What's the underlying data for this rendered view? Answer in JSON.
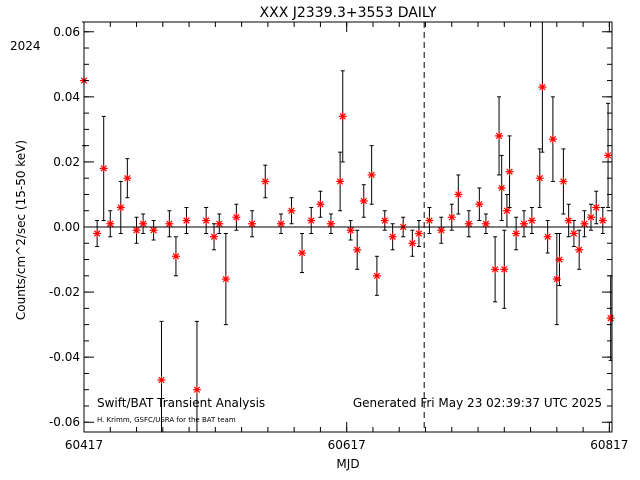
{
  "chart_data": {
    "type": "scatter",
    "title": "XXX J2339.3+3553 DAILY",
    "xlabel": "MJD",
    "ylabel": "Counts/cm^2/sec (15-50 keV)",
    "xlim": [
      60417,
      60819
    ],
    "ylim": [
      -0.063,
      0.063
    ],
    "xticks": [
      "60417",
      "60617",
      "60817"
    ],
    "xtick_values": [
      60417,
      60617,
      60817
    ],
    "yticks": [
      "-0.06",
      "-0.04",
      "-0.02",
      "0.00",
      "0.02",
      "0.04",
      "0.06"
    ],
    "ytick_values": [
      -0.06,
      -0.04,
      -0.02,
      0.0,
      0.02,
      0.04,
      0.06
    ],
    "year_label": "2024",
    "year_boundary_mjd": 60676,
    "footer_left": "Swift/BAT Transient Analysis",
    "footer_credit": "H. Krimm, GSFC/USRA for the BAT team",
    "footer_right": "Generated Fri May 23 02:39:37 UTC 2025",
    "grid": false,
    "marker": "red-asterisk-with-error-bars",
    "colors": {
      "marker": "#ff0000",
      "errorbar": "#000000"
    },
    "points": [
      {
        "x": 60417,
        "y": 0.045,
        "e": 0.02
      },
      {
        "x": 60427,
        "y": -0.002,
        "e": 0.004
      },
      {
        "x": 60432,
        "y": 0.018,
        "e": 0.016
      },
      {
        "x": 60437,
        "y": 0.001,
        "e": 0.004
      },
      {
        "x": 60445,
        "y": 0.006,
        "e": 0.008
      },
      {
        "x": 60450,
        "y": 0.015,
        "e": 0.006
      },
      {
        "x": 60457,
        "y": -0.001,
        "e": 0.004
      },
      {
        "x": 60462,
        "y": 0.001,
        "e": 0.003
      },
      {
        "x": 60470,
        "y": -0.001,
        "e": 0.003
      },
      {
        "x": 60476,
        "y": -0.047,
        "e": 0.018
      },
      {
        "x": 60482,
        "y": 0.001,
        "e": 0.004
      },
      {
        "x": 60487,
        "y": -0.009,
        "e": 0.006
      },
      {
        "x": 60495,
        "y": 0.002,
        "e": 0.004
      },
      {
        "x": 60503,
        "y": -0.05,
        "e": 0.021
      },
      {
        "x": 60510,
        "y": 0.002,
        "e": 0.004
      },
      {
        "x": 60516,
        "y": -0.003,
        "e": 0.004
      },
      {
        "x": 60520,
        "y": 0.001,
        "e": 0.003
      },
      {
        "x": 60525,
        "y": -0.016,
        "e": 0.014
      },
      {
        "x": 60533,
        "y": 0.003,
        "e": 0.004
      },
      {
        "x": 60545,
        "y": 0.001,
        "e": 0.004
      },
      {
        "x": 60555,
        "y": 0.014,
        "e": 0.005
      },
      {
        "x": 60567,
        "y": 0.001,
        "e": 0.003
      },
      {
        "x": 60575,
        "y": 0.005,
        "e": 0.004
      },
      {
        "x": 60583,
        "y": -0.008,
        "e": 0.006
      },
      {
        "x": 60590,
        "y": 0.002,
        "e": 0.004
      },
      {
        "x": 60597,
        "y": 0.007,
        "e": 0.004
      },
      {
        "x": 60605,
        "y": 0.001,
        "e": 0.003
      },
      {
        "x": 60612,
        "y": 0.014,
        "e": 0.009
      },
      {
        "x": 60614,
        "y": 0.034,
        "e": 0.014
      },
      {
        "x": 60620,
        "y": -0.001,
        "e": 0.003
      },
      {
        "x": 60625,
        "y": -0.007,
        "e": 0.006
      },
      {
        "x": 60630,
        "y": 0.008,
        "e": 0.005
      },
      {
        "x": 60636,
        "y": 0.016,
        "e": 0.009
      },
      {
        "x": 60640,
        "y": -0.015,
        "e": 0.006
      },
      {
        "x": 60646,
        "y": 0.002,
        "e": 0.003
      },
      {
        "x": 60652,
        "y": -0.003,
        "e": 0.004
      },
      {
        "x": 60660,
        "y": 0.0,
        "e": 0.003
      },
      {
        "x": 60667,
        "y": -0.005,
        "e": 0.004
      },
      {
        "x": 60672,
        "y": -0.002,
        "e": 0.004
      },
      {
        "x": 60680,
        "y": 0.002,
        "e": 0.004
      },
      {
        "x": 60689,
        "y": -0.001,
        "e": 0.004
      },
      {
        "x": 60697,
        "y": 0.003,
        "e": 0.004
      },
      {
        "x": 60702,
        "y": 0.01,
        "e": 0.006
      },
      {
        "x": 60710,
        "y": 0.001,
        "e": 0.004
      },
      {
        "x": 60718,
        "y": 0.007,
        "e": 0.005
      },
      {
        "x": 60723,
        "y": 0.001,
        "e": 0.003
      },
      {
        "x": 60730,
        "y": -0.013,
        "e": 0.01
      },
      {
        "x": 60733,
        "y": 0.028,
        "e": 0.012
      },
      {
        "x": 60735,
        "y": 0.012,
        "e": 0.01
      },
      {
        "x": 60737,
        "y": -0.013,
        "e": 0.012
      },
      {
        "x": 60739,
        "y": 0.005,
        "e": 0.005
      },
      {
        "x": 60741,
        "y": 0.017,
        "e": 0.011
      },
      {
        "x": 60746,
        "y": -0.002,
        "e": 0.005
      },
      {
        "x": 60752,
        "y": 0.001,
        "e": 0.004
      },
      {
        "x": 60758,
        "y": 0.002,
        "e": 0.004
      },
      {
        "x": 60764,
        "y": 0.015,
        "e": 0.009
      },
      {
        "x": 60766,
        "y": 0.043,
        "e": 0.02
      },
      {
        "x": 60770,
        "y": -0.003,
        "e": 0.005
      },
      {
        "x": 60774,
        "y": 0.027,
        "e": 0.013
      },
      {
        "x": 60777,
        "y": -0.016,
        "e": 0.014
      },
      {
        "x": 60779,
        "y": -0.01,
        "e": 0.008
      },
      {
        "x": 60782,
        "y": 0.014,
        "e": 0.01
      },
      {
        "x": 60786,
        "y": 0.002,
        "e": 0.005
      },
      {
        "x": 60790,
        "y": -0.002,
        "e": 0.004
      },
      {
        "x": 60794,
        "y": -0.007,
        "e": 0.006
      },
      {
        "x": 60798,
        "y": 0.001,
        "e": 0.004
      },
      {
        "x": 60803,
        "y": 0.003,
        "e": 0.004
      },
      {
        "x": 60807,
        "y": 0.006,
        "e": 0.005
      },
      {
        "x": 60812,
        "y": 0.002,
        "e": 0.004
      },
      {
        "x": 60816,
        "y": 0.022,
        "e": 0.016
      },
      {
        "x": 60818,
        "y": -0.028,
        "e": 0.013
      }
    ]
  }
}
